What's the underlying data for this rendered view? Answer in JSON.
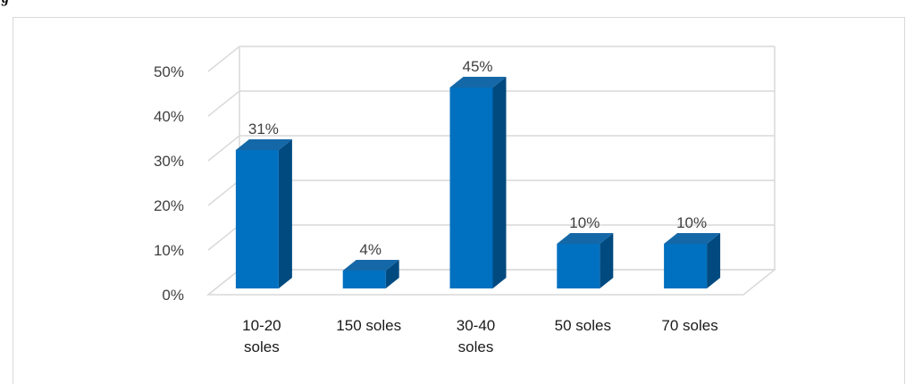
{
  "caption_fragment": "g",
  "chart_data": {
    "type": "bar",
    "style": "3d-column",
    "title": "",
    "xlabel": "",
    "ylabel": "",
    "categories": [
      [
        "10-20",
        "soles"
      ],
      [
        "150 soles"
      ],
      [
        "30-40",
        "soles"
      ],
      [
        "50 soles"
      ],
      [
        "70 soles"
      ]
    ],
    "values": [
      31,
      4,
      45,
      10,
      10
    ],
    "data_labels": [
      "31%",
      "4%",
      "45%",
      "10%",
      "10%"
    ],
    "y_ticks": [
      "0%",
      "10%",
      "20%",
      "30%",
      "40%",
      "50%"
    ],
    "ylim": [
      0,
      50
    ],
    "grid": true,
    "legend": "none",
    "colors": {
      "bar_front": "#0070C0",
      "bar_side": "#004A80",
      "bar_top": "#1568A8",
      "gridline": "#d9d9d9",
      "text": "#404040"
    }
  }
}
